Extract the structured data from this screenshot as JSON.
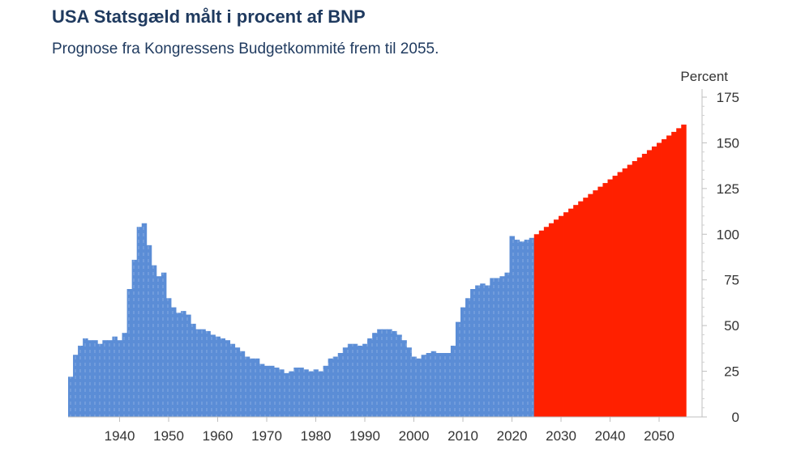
{
  "chart_data": {
    "type": "bar",
    "title": "USA Statsgæld målt i procent af BNP",
    "subtitle": "Prognose fra Kongressens Budgetkommité frem til 2055.",
    "ylabel": "Percent",
    "xlabel": "",
    "ylim": [
      0,
      175
    ],
    "yticks": [
      0,
      25,
      50,
      75,
      100,
      125,
      150,
      175
    ],
    "xticks": [
      1940,
      1950,
      1960,
      1970,
      1980,
      1990,
      2000,
      2010,
      2020,
      2030,
      2040,
      2050
    ],
    "xlim": [
      1930,
      2057
    ],
    "yaxis_position": "right",
    "grid": false,
    "series": [
      {
        "name": "",
        "color": "#5b8dd6",
        "x": [
          1930,
          1931,
          1932,
          1933,
          1934,
          1935,
          1936,
          1937,
          1938,
          1939,
          1940,
          1941,
          1942,
          1943,
          1944,
          1945,
          1946,
          1947,
          1948,
          1949,
          1950,
          1951,
          1952,
          1953,
          1954,
          1955,
          1956,
          1957,
          1958,
          1959,
          1960,
          1961,
          1962,
          1963,
          1964,
          1965,
          1966,
          1967,
          1968,
          1969,
          1970,
          1971,
          1972,
          1973,
          1974,
          1975,
          1976,
          1977,
          1978,
          1979,
          1980,
          1981,
          1982,
          1983,
          1984,
          1985,
          1986,
          1987,
          1988,
          1989,
          1990,
          1991,
          1992,
          1993,
          1994,
          1995,
          1996,
          1997,
          1998,
          1999,
          2000,
          2001,
          2002,
          2003,
          2004,
          2005,
          2006,
          2007,
          2008,
          2009,
          2010,
          2011,
          2012,
          2013,
          2014,
          2015,
          2016,
          2017,
          2018,
          2019,
          2020,
          2021,
          2022,
          2023,
          2024
        ],
        "values": [
          22,
          34,
          39,
          43,
          42,
          42,
          40,
          42,
          42,
          44,
          42,
          46,
          70,
          86,
          104,
          106,
          94,
          83,
          77,
          79,
          65,
          60,
          57,
          58,
          56,
          51,
          48,
          48,
          47,
          45,
          44,
          43,
          42,
          40,
          38,
          36,
          33,
          32,
          32,
          29,
          28,
          28,
          27,
          26,
          24,
          25,
          27,
          27,
          26,
          25,
          26,
          25,
          28,
          32,
          33,
          35,
          38,
          40,
          40,
          39,
          40,
          43,
          46,
          48,
          48,
          48,
          47,
          45,
          42,
          38,
          33,
          32,
          34,
          35,
          36,
          35,
          35,
          35,
          39,
          52,
          60,
          65,
          70,
          72,
          73,
          72,
          76,
          76,
          77,
          79,
          99,
          97,
          96,
          97,
          98
        ]
      },
      {
        "name": "",
        "color": "#ff2000",
        "x": [
          2025,
          2026,
          2027,
          2028,
          2029,
          2030,
          2031,
          2032,
          2033,
          2034,
          2035,
          2036,
          2037,
          2038,
          2039,
          2040,
          2041,
          2042,
          2043,
          2044,
          2045,
          2046,
          2047,
          2048,
          2049,
          2050,
          2051,
          2052,
          2053,
          2054,
          2055
        ],
        "values": [
          100,
          102,
          104,
          106,
          108,
          110,
          112,
          114,
          116,
          118,
          120,
          122,
          124,
          126,
          128,
          130,
          132,
          134,
          136,
          138,
          140,
          142,
          144,
          146,
          148,
          150,
          152,
          154,
          156,
          158,
          160
        ]
      }
    ]
  }
}
